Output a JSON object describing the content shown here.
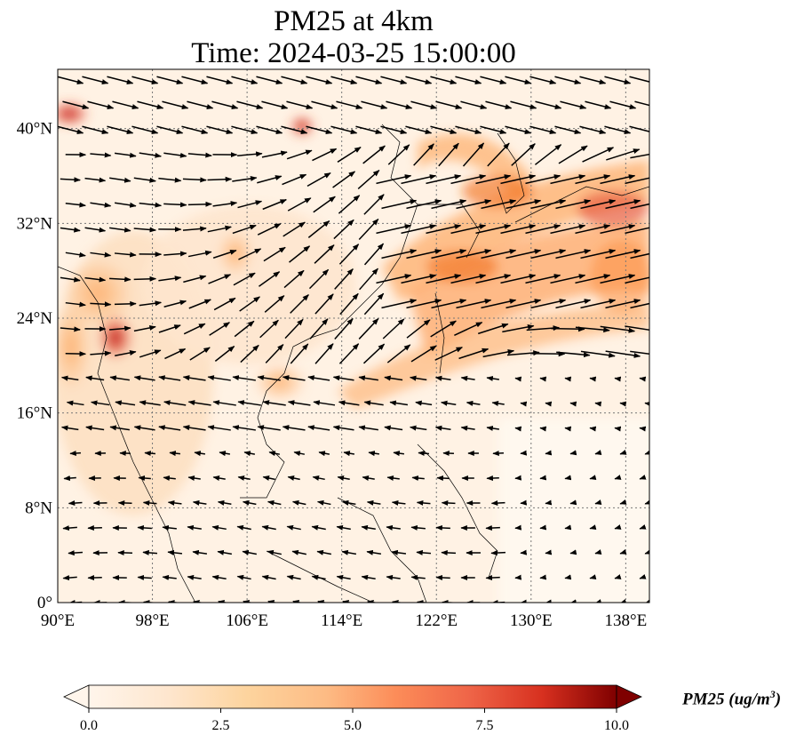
{
  "title": {
    "line1": "PM25 at 4km",
    "line2": "Time: 2024-03-25 15:00:00"
  },
  "map": {
    "lon_range": [
      90,
      140
    ],
    "lat_range": [
      0,
      45
    ],
    "lon_ticks": [
      90,
      98,
      106,
      114,
      122,
      130,
      138
    ],
    "lon_tick_labels": [
      "90°E",
      "98°E",
      "106°E",
      "114°E",
      "122°E",
      "130°E",
      "138°E"
    ],
    "lat_ticks": [
      0,
      8,
      16,
      24,
      32,
      40
    ],
    "lat_tick_labels": [
      "0°",
      "8°N",
      "16°N",
      "24°N",
      "32°N",
      "40°N"
    ],
    "gridlines": true,
    "field_colors": [
      "#fff5eb",
      "#fee6ce",
      "#fdd0a2",
      "#fdae6b",
      "#fd8d3c",
      "#f16913",
      "#d94801",
      "#a63603",
      "#7f2704"
    ]
  },
  "colorbar": {
    "ticks": [
      0.0,
      2.5,
      5.0,
      7.5,
      10.0
    ],
    "tick_labels": [
      "0.0",
      "2.5",
      "5.0",
      "7.5",
      "10.0"
    ],
    "min": 0,
    "max": 10,
    "extend": "both",
    "label_text": "PM25 (ug/m",
    "label_superscript": "3",
    "label_close": ")"
  }
}
